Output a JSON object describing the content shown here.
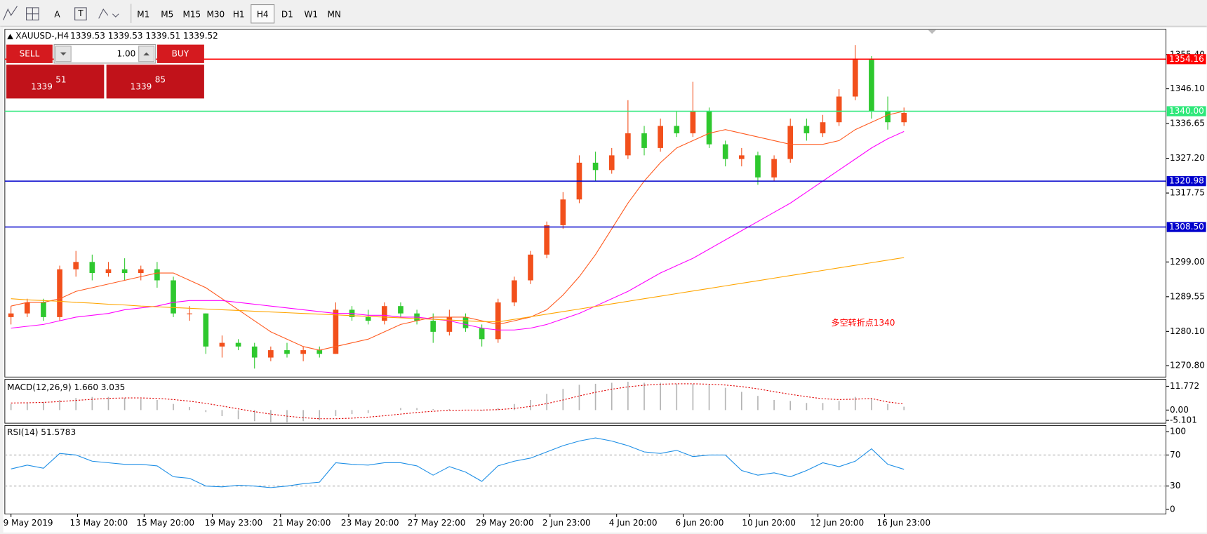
{
  "toolbar": {
    "tools": [
      "A",
      "T"
    ],
    "timeframes": [
      "M1",
      "M5",
      "M15",
      "M30",
      "H1",
      "H4",
      "D1",
      "W1",
      "MN"
    ],
    "active": "H4"
  },
  "trade_panel": {
    "sell": "SELL",
    "buy": "BUY",
    "lots": "1.00",
    "bid": {
      "prefix": "1339",
      "pips": "51"
    },
    "ask": {
      "prefix": "1339",
      "pips": "85"
    }
  },
  "chart_data": [
    {
      "type": "candlestick",
      "symbol": "XAUUSD-,H4",
      "quote": "1339.53 1339.53 1339.51 1339.52",
      "up_color": "#f2501c",
      "down_color": "#2ec82e",
      "open": [
        1284,
        1285,
        1288,
        1284,
        1297,
        1299,
        1296,
        1297,
        1296,
        1297,
        1294,
        1285,
        1285,
        1276,
        1277,
        1276,
        1273,
        1275,
        1274,
        1275,
        1274,
        1286,
        1284,
        1283,
        1287,
        1285,
        1283,
        1280,
        1284,
        1281,
        1278,
        1288,
        1294,
        1301,
        1309,
        1316,
        1326,
        1324,
        1328,
        1334,
        1330,
        1336,
        1334,
        1340,
        1331,
        1327,
        1328,
        1322,
        1327,
        1336,
        1334,
        1337,
        1344,
        1354,
        1340,
        1337
      ],
      "high": [
        1287,
        1289,
        1289,
        1298,
        1302,
        1301,
        1299,
        1300,
        1298,
        1299,
        1295,
        1287,
        1285,
        1279,
        1278,
        1277,
        1276,
        1277,
        1276,
        1276,
        1288,
        1287,
        1286,
        1288,
        1288,
        1286,
        1285,
        1286,
        1285,
        1282,
        1289,
        1295,
        1302,
        1310,
        1318,
        1328,
        1329,
        1330,
        1343,
        1336,
        1338,
        1340,
        1348,
        1341,
        1332,
        1330,
        1329,
        1328,
        1338,
        1338,
        1339,
        1346,
        1358,
        1355,
        1344,
        1341
      ],
      "low": [
        1282,
        1284,
        1283,
        1283,
        1295,
        1294,
        1295,
        1294,
        1294,
        1292,
        1284,
        1283,
        1274,
        1273,
        1275,
        1270,
        1272,
        1273,
        1272,
        1273,
        1274,
        1283,
        1282,
        1282,
        1284,
        1282,
        1277,
        1279,
        1280,
        1276,
        1277,
        1287,
        1293,
        1300,
        1308,
        1315,
        1321,
        1323,
        1327,
        1328,
        1329,
        1333,
        1333,
        1330,
        1325,
        1325,
        1320,
        1321,
        1326,
        1332,
        1333,
        1336,
        1343,
        1338,
        1335,
        1336
      ],
      "close": [
        1285,
        1288,
        1284,
        1297,
        1299,
        1296,
        1297,
        1296,
        1297,
        1294,
        1285,
        1285,
        1276,
        1277,
        1276,
        1273,
        1275,
        1274,
        1275,
        1274,
        1286,
        1284,
        1283,
        1287,
        1285,
        1283,
        1280,
        1284,
        1281,
        1278,
        1288,
        1294,
        1301,
        1309,
        1316,
        1326,
        1324,
        1328,
        1334,
        1330,
        1336,
        1334,
        1340,
        1331,
        1327,
        1328,
        1322,
        1327,
        1336,
        1334,
        1337,
        1344,
        1354,
        1340,
        1337,
        1339.52
      ],
      "lines": [
        {
          "color": "#ff5a1f",
          "values": [
            1287,
            1288,
            1288,
            1289,
            1291,
            1292,
            1293,
            1294,
            1295,
            1296,
            1296,
            1294,
            1292,
            1289,
            1286,
            1283,
            1280,
            1278,
            1276,
            1275,
            1276,
            1277,
            1278,
            1280,
            1282,
            1283,
            1284,
            1284,
            1284,
            1283,
            1282,
            1283,
            1284,
            1286,
            1290,
            1295,
            1301,
            1308,
            1315,
            1321,
            1326,
            1330,
            1332,
            1334,
            1335,
            1334,
            1333,
            1332,
            1331,
            1331,
            1331,
            1332,
            1335,
            1337,
            1339,
            1340
          ]
        },
        {
          "color": "#ff00ff",
          "values": [
            1281,
            1281.5,
            1282,
            1283,
            1284,
            1284.5,
            1285,
            1286,
            1286.5,
            1287,
            1288,
            1288.5,
            1288.5,
            1288.5,
            1288,
            1287.5,
            1287,
            1286.5,
            1286,
            1285.5,
            1285,
            1285,
            1284.5,
            1284.5,
            1284,
            1284,
            1283.5,
            1283,
            1282,
            1281,
            1280.5,
            1280.5,
            1281,
            1282,
            1283.5,
            1285,
            1287,
            1289,
            1291,
            1293.5,
            1296,
            1298,
            1300,
            1302.5,
            1305,
            1307.5,
            1310,
            1312.5,
            1315,
            1318,
            1321,
            1324,
            1327,
            1330,
            1332.5,
            1334.5
          ]
        },
        {
          "color": "#ffa500",
          "values": [
            1289,
            1288.7,
            1288.5,
            1288.3,
            1288,
            1287.8,
            1287.5,
            1287.3,
            1287,
            1286.8,
            1286.6,
            1286.4,
            1286.2,
            1286,
            1285.8,
            1285.6,
            1285.4,
            1285.2,
            1285,
            1284.8,
            1284.6,
            1284.4,
            1284.2,
            1284,
            1283.8,
            1283.6,
            1283.4,
            1283.2,
            1283,
            1282.8,
            1282.7,
            1283.4,
            1284.1,
            1284.8,
            1285.5,
            1286.2,
            1286.9,
            1287.6,
            1288.3,
            1289,
            1289.7,
            1290.4,
            1291.1,
            1291.8,
            1292.5,
            1293.2,
            1293.9,
            1294.6,
            1295.3,
            1296,
            1296.7,
            1297.4,
            1298.1,
            1298.8,
            1299.5,
            1300.2
          ]
        }
      ],
      "levels": [
        {
          "value": 1354.16,
          "color": "#ff0000"
        },
        {
          "value": 1340,
          "label": "1340.00",
          "color": "#2ee87a"
        },
        {
          "value": 1320.98,
          "color": "#0000cc"
        },
        {
          "value": 1308.5,
          "label": "1308.50",
          "color": "#0000cc"
        }
      ],
      "ylim": [
        1267.7,
        1362.3
      ],
      "yticks": [
        {
          "value": 1355.4,
          "label": "1355.40"
        },
        {
          "value": 1346.1,
          "label": "1346.10"
        },
        1336.65,
        {
          "value": 1327.2,
          "label": "1327.20"
        },
        1317.75,
        {
          "value": 1299,
          "label": "1299.00"
        },
        1289.55,
        {
          "value": 1280.1,
          "label": "1280.10"
        },
        {
          "value": 1270.8,
          "label": "1270.80"
        }
      ],
      "xticks": [
        {
          "value": 0,
          "label": "9 May 2019"
        },
        {
          "value": 4.1,
          "label": "13 May 20:00"
        },
        {
          "value": 8.2,
          "label": "15 May 20:00"
        },
        {
          "value": 12.4,
          "label": "19 May 23:00"
        },
        {
          "value": 16.6,
          "label": "21 May 20:00"
        },
        {
          "value": 20.8,
          "label": "23 May 20:00"
        },
        {
          "value": 24.9,
          "label": "27 May 22:00"
        },
        {
          "value": 29.1,
          "label": "29 May 20:00"
        },
        {
          "value": 33.2,
          "label": "2 Jun 23:00"
        },
        {
          "value": 37.3,
          "label": "4 Jun 20:00"
        },
        {
          "value": 41.4,
          "label": "6 Jun 20:00"
        },
        {
          "value": 45.5,
          "label": "10 Jun 20:00"
        },
        {
          "value": 49.7,
          "label": "12 Jun 20:00"
        },
        {
          "value": 53.8,
          "label": "16 Jun 23:00"
        }
      ],
      "annotation": "多空转折点1340"
    },
    {
      "type": "macd",
      "title": "MACD(12,26,9) 1.660 3.035",
      "series": [
        {
          "style": "histogram",
          "color": "#b4b4b4",
          "values": [
            3,
            3.5,
            4,
            5,
            6,
            6.5,
            6.5,
            6,
            5.5,
            5,
            3,
            1.5,
            -1,
            -3,
            -4.5,
            -5.5,
            -6,
            -6,
            -5.5,
            -5,
            -3,
            -2,
            -1.5,
            0,
            1,
            1,
            0.5,
            0.5,
            0,
            -0.5,
            1,
            3,
            5,
            8,
            10.5,
            12.5,
            13,
            13.5,
            14,
            13.5,
            13.5,
            13,
            13,
            12.5,
            11,
            9,
            7,
            5,
            4.5,
            3.5,
            3.5,
            4.5,
            6.5,
            5.5,
            3,
            1.66
          ]
        },
        {
          "style": "dotted",
          "color": "#e00000",
          "values": [
            3.5,
            3.6,
            3.8,
            4.2,
            4.8,
            5.3,
            5.8,
            6,
            6,
            5.8,
            5.2,
            4.4,
            3.3,
            2,
            0.6,
            -0.8,
            -2,
            -3,
            -3.8,
            -4.3,
            -4.3,
            -4,
            -3.5,
            -2.8,
            -2,
            -1.2,
            -0.6,
            -0.2,
            0,
            0,
            0.2,
            0.8,
            1.8,
            3.2,
            5,
            7,
            8.8,
            10.3,
            11.5,
            12.3,
            12.8,
            13,
            13,
            12.8,
            12.4,
            11.6,
            10.5,
            9.1,
            7.8,
            6.6,
            5.6,
            5.2,
            5.4,
            5.7,
            4,
            3.035
          ]
        }
      ],
      "ylim": [
        -6.5,
        15.2
      ],
      "yticks": [
        11.772,
        {
          "value": 0,
          "label": "0.00"
        },
        -5.101
      ]
    },
    {
      "type": "rsi",
      "title": "RSI(14) 51.5783",
      "color": "#1e8fe6",
      "values": [
        52,
        57,
        53,
        72,
        70,
        62,
        60,
        58,
        58,
        56,
        42,
        40,
        30,
        29,
        31,
        30,
        28,
        30,
        33,
        35,
        60,
        58,
        57,
        60,
        60,
        56,
        44,
        55,
        48,
        36,
        56,
        62,
        66,
        74,
        82,
        88,
        92,
        88,
        82,
        74,
        72,
        76,
        68,
        70,
        70,
        50,
        44,
        47,
        42,
        50,
        60,
        55,
        62,
        78,
        58,
        51.5783
      ],
      "levels": [
        70,
        30
      ],
      "ylim": [
        -6,
        108
      ],
      "yticks": [
        100,
        70,
        30,
        0
      ]
    }
  ]
}
